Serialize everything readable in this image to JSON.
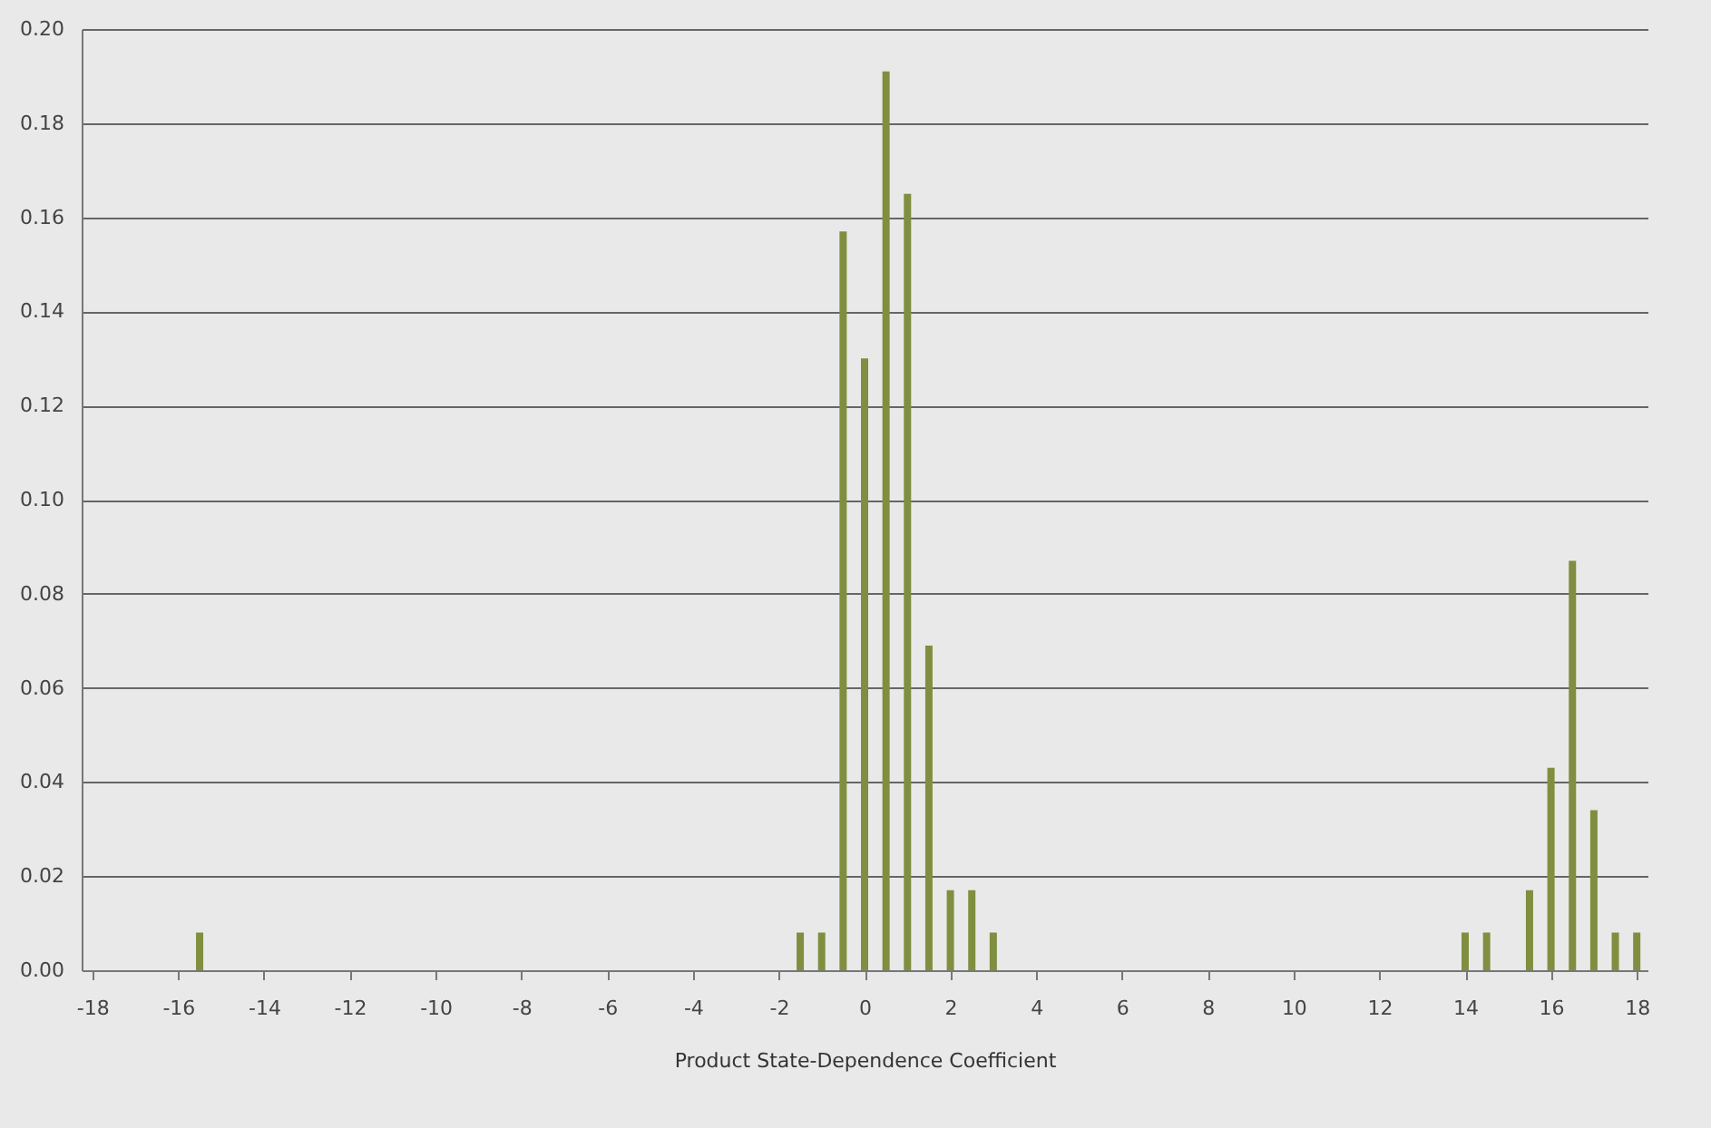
{
  "chart_data": {
    "type": "bar",
    "xlabel": "Product State-Dependence Coefficient",
    "x": [
      -15.5,
      -1.5,
      -1,
      -0.5,
      0,
      0.5,
      1,
      1.5,
      2,
      2.5,
      3,
      14,
      14.5,
      15.5,
      16,
      16.5,
      17,
      17.5,
      18
    ],
    "values": [
      0.008,
      0.008,
      0.008,
      0.157,
      0.13,
      0.191,
      0.165,
      0.069,
      0.017,
      0.017,
      0.008,
      0.008,
      0.008,
      0.017,
      0.043,
      0.087,
      0.034,
      0.008,
      0.008
    ],
    "color": "#7f8f3f",
    "xlim": [
      -18.25,
      18.25
    ],
    "xticks": [
      -18,
      -16,
      -14,
      -12,
      -10,
      -8,
      -6,
      -4,
      -2,
      0,
      2,
      4,
      6,
      8,
      10,
      12,
      14,
      16,
      18
    ],
    "ylim": [
      0,
      0.2
    ],
    "yticks": [
      {
        "value": 0,
        "label": "0.00"
      },
      {
        "value": 0.02,
        "label": "0.02"
      },
      {
        "value": 0.04,
        "label": "0.04"
      },
      {
        "value": 0.06,
        "label": "0.06"
      },
      {
        "value": 0.08,
        "label": "0.08"
      },
      {
        "value": 0.1,
        "label": "0.10"
      },
      {
        "value": 0.12,
        "label": "0.12"
      },
      {
        "value": 0.14,
        "label": "0.14"
      },
      {
        "value": 0.16,
        "label": "0.16"
      },
      {
        "value": 0.18,
        "label": "0.18"
      },
      {
        "value": 0.2,
        "label": "0.20"
      }
    ],
    "grid": "y"
  }
}
